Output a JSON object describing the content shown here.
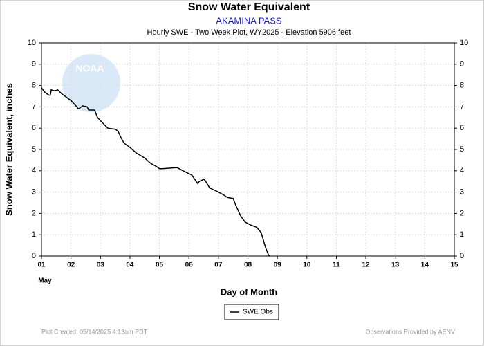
{
  "chart_data": {
    "type": "line",
    "title": "Snow Water Equivalent",
    "subtitle": "AKAMINA PASS",
    "description": "Hourly SWE - Two Week Plot, WY2025 -  Elevation 5906 feet",
    "x_label": "Day of Month",
    "x_sublabel": "May",
    "y_label": "Snow Water Equivalent, inches",
    "logo_text": "NOAA",
    "footer_left": "Plot Created: 05/14/2025 4:13am PDT",
    "footer_right": "Observations Provided by AENV",
    "xlim": [
      1,
      15
    ],
    "xticks": [
      {
        "value": 1,
        "label": "01"
      },
      {
        "value": 2,
        "label": "02"
      },
      {
        "value": 3,
        "label": "03"
      },
      {
        "value": 4,
        "label": "04"
      },
      {
        "value": 5,
        "label": "05"
      },
      {
        "value": 6,
        "label": "06"
      },
      {
        "value": 7,
        "label": "07"
      },
      {
        "value": 8,
        "label": "08"
      },
      {
        "value": 9,
        "label": "09"
      },
      10,
      11,
      12,
      13,
      14,
      15
    ],
    "ylim": [
      0,
      10
    ],
    "yticks": [
      0,
      1,
      2,
      3,
      4,
      5,
      6,
      7,
      8,
      9,
      10
    ],
    "grid": true,
    "legend": "bottom",
    "series": [
      {
        "name": "SWE Obs",
        "color": "#000000",
        "x": [
          1.0,
          1.1,
          1.25,
          1.3,
          1.33,
          1.45,
          1.55,
          1.7,
          2.0,
          2.2,
          2.25,
          2.4,
          2.55,
          2.6,
          2.8,
          2.9,
          3.0,
          3.25,
          3.5,
          3.6,
          3.7,
          3.8,
          4.0,
          4.2,
          4.5,
          4.7,
          4.9,
          5.0,
          5.1,
          5.6,
          5.8,
          6.1,
          6.2,
          6.3,
          6.35,
          6.5,
          6.55,
          6.7,
          7.0,
          7.2,
          7.3,
          7.5,
          7.6,
          7.75,
          7.9,
          8.1,
          8.3,
          8.45,
          8.6,
          8.7,
          8.75
        ],
        "values": [
          7.9,
          7.7,
          7.55,
          7.55,
          7.8,
          7.75,
          7.8,
          7.6,
          7.3,
          7.0,
          6.9,
          7.05,
          7.0,
          6.85,
          6.85,
          6.5,
          6.35,
          6.0,
          5.95,
          5.85,
          5.55,
          5.3,
          5.1,
          4.85,
          4.6,
          4.35,
          4.2,
          4.1,
          4.1,
          4.15,
          4.0,
          3.8,
          3.6,
          3.4,
          3.5,
          3.6,
          3.55,
          3.2,
          3.0,
          2.85,
          2.75,
          2.7,
          2.35,
          1.9,
          1.6,
          1.45,
          1.35,
          1.1,
          0.4,
          0.05,
          0
        ]
      }
    ]
  }
}
